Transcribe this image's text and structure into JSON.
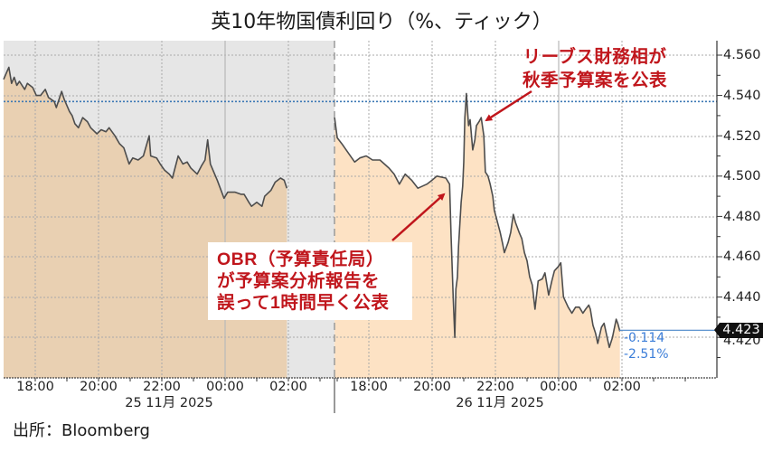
{
  "title": "英10年物国債利回り（%、ティック）",
  "source": "出所：Bloomberg",
  "annotations": {
    "obr": [
      "OBR（予算責任局）",
      "が予算案分析報告を",
      "誤って1時間早く公表"
    ],
    "reeves": [
      "リーブス財務相が",
      "秋季予算案を公表"
    ]
  },
  "last_price": {
    "value": "4.423",
    "change": "-0.114",
    "change_pct": "-2.51%"
  },
  "colors": {
    "session1_fill": "#e9d0b2",
    "session2_fill": "#fde2c4",
    "session1_background": "#e6e6e6",
    "line": "#4d4d4d",
    "reference_line": "#3c78b5",
    "last_price_line": "#4a86c8",
    "annotation_red": "#c0161c",
    "change_text": "#3b7dd8"
  },
  "chart_data": {
    "type": "area",
    "title": "英10年物国債利回り（%、ティック）",
    "xlabel": "",
    "ylabel": "",
    "ylim": [
      4.4,
      4.567
    ],
    "y_ticks": [
      "4.560",
      "4.540",
      "4.520",
      "4.500",
      "4.480",
      "4.460",
      "4.440",
      "4.420"
    ],
    "x_ticks": [
      {
        "labels": [
          "18:00",
          "20:00",
          "22:00",
          "00:00",
          "02:00"
        ]
      },
      {
        "labels": [
          "18:00",
          "20:00",
          "22:00",
          "00:00",
          "02:00"
        ]
      }
    ],
    "date_labels": [
      "25 11月 2025",
      "26 11月 2025"
    ],
    "grid": true,
    "legend": "none",
    "reference_line": {
      "value": 4.537,
      "style": "dotted"
    },
    "last_value": 4.423,
    "change": -0.114,
    "change_pct": -2.51,
    "series": [
      {
        "name": "25 11月 2025",
        "times": [
          "17:00",
          "17:05",
          "17:10",
          "17:15",
          "17:20",
          "17:25",
          "17:30",
          "17:40",
          "17:45",
          "17:55",
          "18:02",
          "18:10",
          "18:19",
          "18:25",
          "18:36",
          "18:40",
          "18:50",
          "18:55",
          "19:05",
          "19:10",
          "19:15",
          "19:22",
          "19:30",
          "19:39",
          "19:45",
          "19:57",
          "20:05",
          "20:14",
          "20:20",
          "20:31",
          "20:40",
          "20:48",
          "20:58",
          "21:05",
          "21:15",
          "21:25",
          "21:36",
          "21:39",
          "21:50",
          "21:57",
          "22:05",
          "22:14",
          "22:20",
          "22:31",
          "22:40",
          "22:48",
          "22:55",
          "23:07",
          "23:15",
          "23:22",
          "23:27",
          "23:32",
          "23:45",
          "23:58",
          "00:05",
          "00:19",
          "00:30",
          "00:36",
          "00:45",
          "00:50",
          "01:00",
          "01:10",
          "01:15",
          "01:27",
          "01:35",
          "01:45",
          "01:52",
          "01:57"
        ],
        "values": [
          4.548,
          4.551,
          4.554,
          4.546,
          4.549,
          4.545,
          4.547,
          4.543,
          4.546,
          4.544,
          4.54,
          4.54,
          4.543,
          4.539,
          4.537,
          4.534,
          4.542,
          4.538,
          4.532,
          4.53,
          4.526,
          4.524,
          4.529,
          4.527,
          4.524,
          4.521,
          4.523,
          4.522,
          4.524,
          4.52,
          4.516,
          4.514,
          4.506,
          4.509,
          4.508,
          4.51,
          4.52,
          4.51,
          4.509,
          4.506,
          4.503,
          4.501,
          4.499,
          4.51,
          4.506,
          4.507,
          4.504,
          4.501,
          4.505,
          4.508,
          4.518,
          4.506,
          4.498,
          4.489,
          4.492,
          4.492,
          4.491,
          4.491,
          4.487,
          4.485,
          4.487,
          4.485,
          4.49,
          4.493,
          4.497,
          4.499,
          4.498,
          4.494
        ]
      },
      {
        "name": "26 11月 2025",
        "times": [
          "16:55",
          "17:00",
          "17:09",
          "17:17",
          "17:33",
          "17:43",
          "17:55",
          "18:07",
          "18:21",
          "18:38",
          "18:48",
          "18:58",
          "19:09",
          "19:21",
          "19:33",
          "19:50",
          "20:00",
          "20:09",
          "20:26",
          "20:33",
          "20:36",
          "20:40",
          "20:43",
          "20:45",
          "20:48",
          "20:50",
          "20:55",
          "20:58",
          "21:00",
          "21:02",
          "21:05",
          "21:09",
          "21:12",
          "21:17",
          "21:21",
          "21:24",
          "21:29",
          "21:33",
          "21:38",
          "21:41",
          "21:46",
          "21:50",
          "21:55",
          "21:58",
          "22:03",
          "22:09",
          "22:14",
          "22:17",
          "22:24",
          "22:29",
          "22:34",
          "22:38",
          "22:45",
          "22:50",
          "22:55",
          "23:00",
          "23:05",
          "23:10",
          "23:15",
          "23:21",
          "23:29",
          "23:34",
          "23:41",
          "23:47",
          "23:52",
          "23:59",
          "00:04",
          "00:09",
          "00:18",
          "00:25",
          "00:32",
          "00:39",
          "00:46",
          "00:51",
          "00:57",
          "01:00",
          "01:05",
          "01:10",
          "01:14",
          "01:21",
          "01:26",
          "01:31",
          "01:36",
          "01:42",
          "01:49",
          "01:52",
          "01:56"
        ],
        "values": [
          4.529,
          4.519,
          4.516,
          4.513,
          4.507,
          4.509,
          4.51,
          4.508,
          4.508,
          4.504,
          4.501,
          4.496,
          4.501,
          4.498,
          4.494,
          4.496,
          4.498,
          4.5,
          4.499,
          4.496,
          4.47,
          4.44,
          4.42,
          4.444,
          4.45,
          4.465,
          4.487,
          4.495,
          4.507,
          4.529,
          4.541,
          4.525,
          4.528,
          4.513,
          4.518,
          4.525,
          4.527,
          4.529,
          4.52,
          4.502,
          4.5,
          4.496,
          4.49,
          4.483,
          4.478,
          4.472,
          4.466,
          4.462,
          4.467,
          4.472,
          4.481,
          4.477,
          4.472,
          4.469,
          4.462,
          4.458,
          4.45,
          4.446,
          4.434,
          4.448,
          4.449,
          4.452,
          4.441,
          4.448,
          4.453,
          4.455,
          4.457,
          4.44,
          4.435,
          4.432,
          4.435,
          4.435,
          4.432,
          4.434,
          4.436,
          4.434,
          4.426,
          4.422,
          4.417,
          4.425,
          4.427,
          4.421,
          4.415,
          4.42,
          4.429,
          4.427,
          4.423
        ]
      }
    ]
  }
}
